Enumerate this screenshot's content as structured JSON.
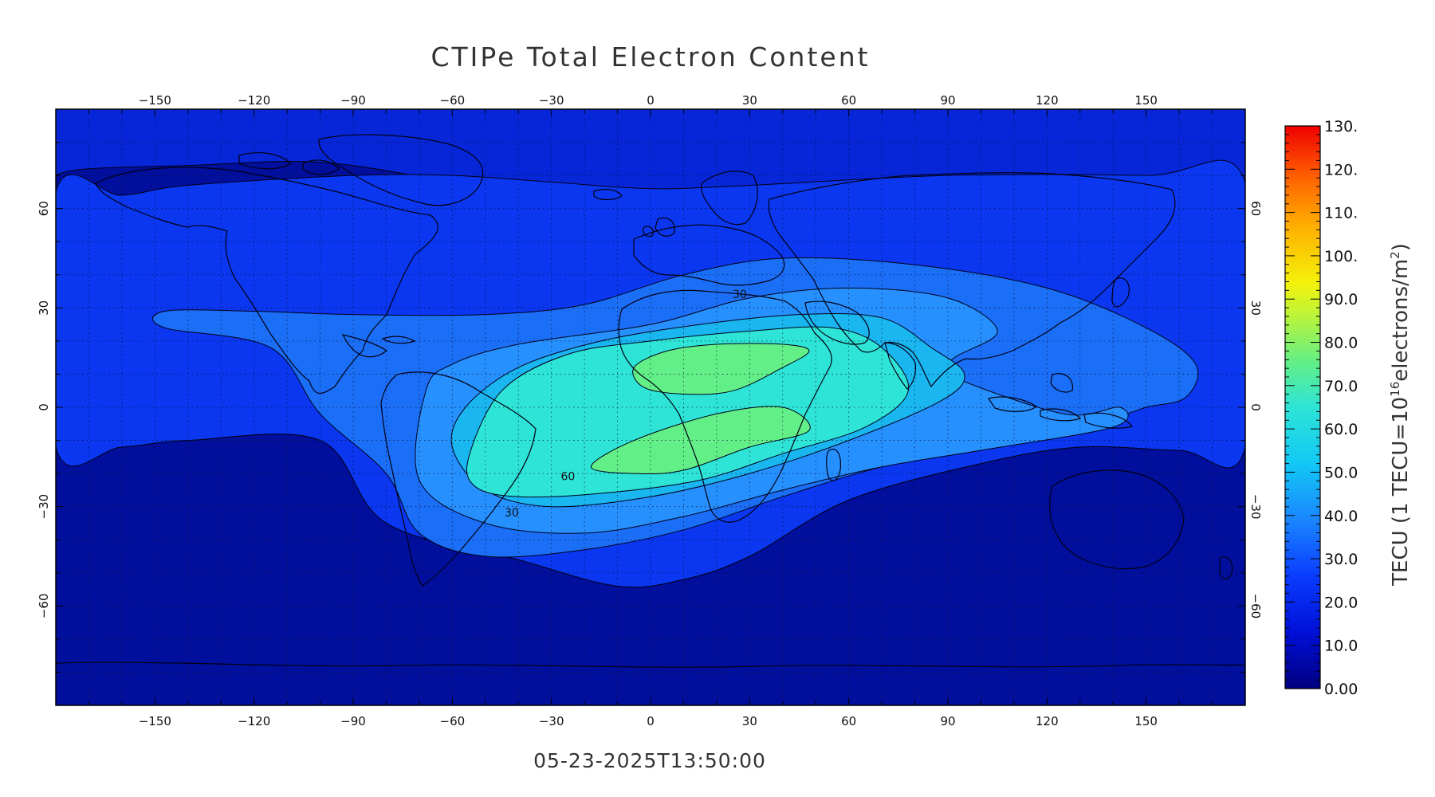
{
  "title": "CTIPe Total Electron Content",
  "timestamp": "05-23-2025T13:50:00",
  "colorbar": {
    "label_prefix": "TECU (1 TECU=10",
    "label_exponent": "16",
    "label_mid": "electrons/m",
    "label_sq": "2",
    "label_suffix": ")",
    "ticks": [
      "130.",
      "120.",
      "110.",
      "100.",
      "90.0",
      "80.0",
      "70.0",
      "60.0",
      "50.0",
      "40.0",
      "30.0",
      "20.0",
      "10.0",
      "0.00"
    ],
    "range": [
      0,
      130
    ]
  },
  "axes": {
    "lon_ticks": [
      -150,
      -120,
      -90,
      -60,
      -30,
      0,
      30,
      60,
      90,
      120,
      150
    ],
    "lat_ticks": [
      60,
      30,
      0,
      -30,
      -60
    ],
    "lon_range": [
      -180,
      180
    ],
    "lat_range": [
      -90,
      90
    ]
  },
  "contour_labels": [
    {
      "text": "30",
      "lon": 27,
      "lat": 33
    },
    {
      "text": "60",
      "lon": -25,
      "lat": -22
    },
    {
      "text": "30",
      "lon": -42,
      "lat": -33
    }
  ],
  "chart_data": {
    "type": "heatmap",
    "title": "CTIPe Total Electron Content",
    "xlabel": "",
    "ylabel": "",
    "x_range": [
      -180,
      180
    ],
    "y_range": [
      -90,
      90
    ],
    "colorbar_label": "TECU (1 TECU=10^16 electrons/m^2)",
    "colorbar_range": [
      0,
      130
    ],
    "grid": true,
    "contour_levels": [
      10,
      20,
      30,
      40,
      50,
      60,
      70
    ],
    "regions": [
      {
        "level": 20,
        "color": "#0a37ef",
        "polygon": [
          [
            -180,
            65
          ],
          [
            -160,
            64
          ],
          [
            -140,
            67
          ],
          [
            -90,
            70
          ],
          [
            -60,
            70
          ],
          [
            -30,
            68
          ],
          [
            0,
            66
          ],
          [
            30,
            67
          ],
          [
            90,
            70
          ],
          [
            150,
            70
          ],
          [
            180,
            68
          ],
          [
            180,
            -12
          ],
          [
            160,
            -13
          ],
          [
            130,
            -12
          ],
          [
            100,
            -17
          ],
          [
            60,
            -28
          ],
          [
            30,
            -45
          ],
          [
            10,
            -52
          ],
          [
            -10,
            -54
          ],
          [
            -40,
            -46
          ],
          [
            -80,
            -35
          ],
          [
            -100,
            -10
          ],
          [
            -140,
            -10
          ],
          [
            -160,
            -12
          ],
          [
            -180,
            -12
          ]
        ]
      },
      {
        "level": 30,
        "color": "#1b6ef6",
        "polygon": [
          [
            -147,
            29
          ],
          [
            -120,
            29
          ],
          [
            -90,
            28
          ],
          [
            -50,
            28
          ],
          [
            -20,
            31
          ],
          [
            10,
            40
          ],
          [
            40,
            45
          ],
          [
            80,
            43
          ],
          [
            120,
            36
          ],
          [
            150,
            24
          ],
          [
            165,
            13
          ],
          [
            162,
            3
          ],
          [
            150,
            0
          ],
          [
            140,
            -3
          ],
          [
            100,
            -12
          ],
          [
            70,
            -18
          ],
          [
            40,
            -27
          ],
          [
            10,
            -37
          ],
          [
            -20,
            -43
          ],
          [
            -50,
            -45
          ],
          [
            -70,
            -38
          ],
          [
            -80,
            -20
          ],
          [
            -100,
            -2
          ],
          [
            -115,
            18
          ],
          [
            -147,
            24
          ]
        ]
      },
      {
        "level": 40,
        "color": "#2690ff",
        "polygon": [
          [
            -68,
            5
          ],
          [
            -60,
            13
          ],
          [
            -40,
            19
          ],
          [
            0,
            25
          ],
          [
            30,
            33
          ],
          [
            60,
            36
          ],
          [
            90,
            33
          ],
          [
            105,
            23
          ],
          [
            92,
            15
          ],
          [
            90,
            10
          ],
          [
            125,
            -2
          ],
          [
            142,
            0
          ],
          [
            140,
            -6
          ],
          [
            100,
            -13
          ],
          [
            70,
            -18
          ],
          [
            40,
            -25
          ],
          [
            10,
            -33
          ],
          [
            -20,
            -38
          ],
          [
            -50,
            -35
          ],
          [
            -70,
            -22
          ]
        ]
      },
      {
        "level": 50,
        "color": "#19b6f0",
        "polygon": [
          [
            -56,
            0
          ],
          [
            -40,
            12
          ],
          [
            -15,
            20
          ],
          [
            15,
            25
          ],
          [
            45,
            28
          ],
          [
            70,
            27
          ],
          [
            85,
            18
          ],
          [
            95,
            10
          ],
          [
            88,
            2
          ],
          [
            60,
            -10
          ],
          [
            30,
            -20
          ],
          [
            0,
            -27
          ],
          [
            -30,
            -30
          ],
          [
            -50,
            -25
          ],
          [
            -60,
            -12
          ]
        ]
      },
      {
        "level": 60,
        "color": "#2ee4d6",
        "polygon": [
          [
            -55,
            -15
          ],
          [
            -45,
            5
          ],
          [
            -25,
            16
          ],
          [
            0,
            20
          ],
          [
            30,
            23
          ],
          [
            55,
            24
          ],
          [
            70,
            18
          ],
          [
            78,
            5
          ],
          [
            65,
            -6
          ],
          [
            40,
            -14
          ],
          [
            15,
            -22
          ],
          [
            -15,
            -26
          ],
          [
            -40,
            -27
          ],
          [
            -53,
            -24
          ]
        ]
      },
      {
        "level": 70,
        "color": "#62ef87",
        "polygon": [
          [
            -5,
            12
          ],
          [
            5,
            17
          ],
          [
            20,
            19
          ],
          [
            40,
            19
          ],
          [
            48,
            17
          ],
          [
            40,
            12
          ],
          [
            25,
            5
          ],
          [
            10,
            4
          ],
          [
            -2,
            6
          ]
        ]
      },
      {
        "level": 70,
        "color": "#62ef87",
        "polygon": [
          [
            -18,
            -18
          ],
          [
            -5,
            -10
          ],
          [
            20,
            -2
          ],
          [
            40,
            0
          ],
          [
            48,
            -7
          ],
          [
            30,
            -12
          ],
          [
            10,
            -19
          ],
          [
            -5,
            -20
          ]
        ]
      }
    ],
    "low_regions": [
      {
        "level": 10,
        "color": "#010f9c",
        "polygon": [
          [
            -180,
            -12
          ],
          [
            -160,
            -12
          ],
          [
            -140,
            -10
          ],
          [
            -100,
            -10
          ],
          [
            -80,
            -35
          ],
          [
            -40,
            -46
          ],
          [
            -10,
            -54
          ],
          [
            10,
            -52
          ],
          [
            30,
            -45
          ],
          [
            60,
            -28
          ],
          [
            100,
            -17
          ],
          [
            130,
            -12
          ],
          [
            160,
            -13
          ],
          [
            180,
            -12
          ],
          [
            180,
            -90
          ],
          [
            -180,
            -90
          ]
        ]
      },
      {
        "level": 10,
        "color": "#010f9c",
        "polygon": [
          [
            -180,
            67
          ],
          [
            -160,
            63
          ],
          [
            -140,
            61
          ],
          [
            -100,
            62
          ],
          [
            -60,
            64
          ],
          [
            -40,
            65
          ],
          [
            -60,
            68
          ],
          [
            -100,
            74
          ],
          [
            -140,
            73
          ],
          [
            -170,
            72
          ],
          [
            -180,
            70
          ]
        ]
      }
    ]
  }
}
